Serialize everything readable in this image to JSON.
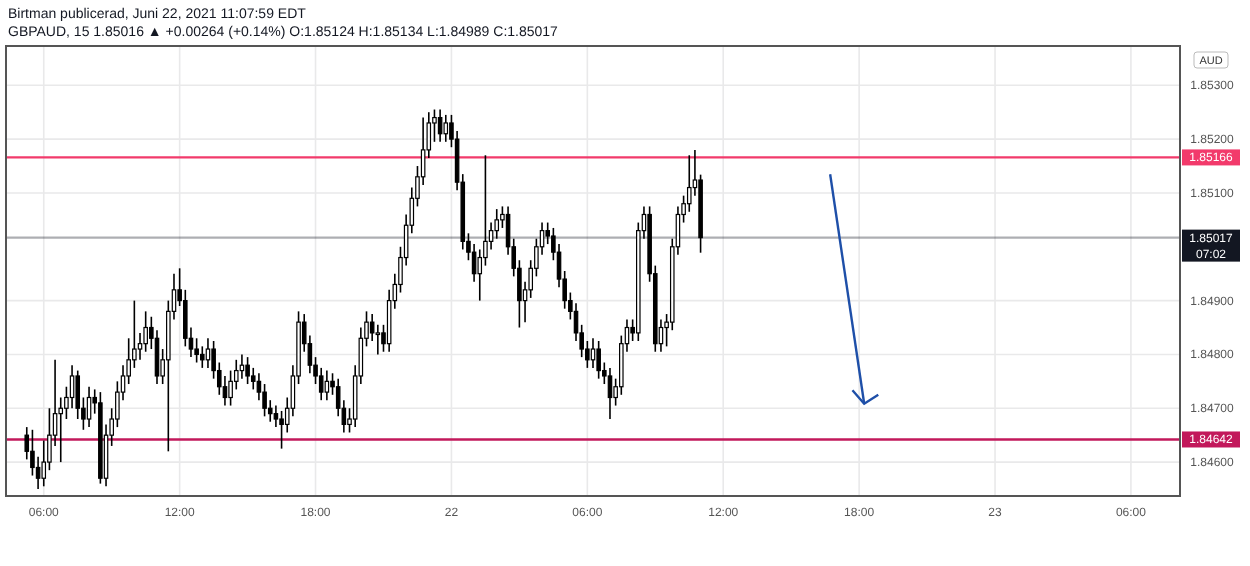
{
  "chart_data": {
    "type": "candlestick",
    "title": "Birtman publicerad, Juni 22, 2021 11:07:59 EDT",
    "subtitle": "GBPAUD, 15  1.85016 ▲ +0.00264 (+0.14%) O:1.85124 H:1.85134 L:1.84989 C:1.85017",
    "ylabel": "AUD",
    "x": [
      "2021-06-21T05:15",
      "2021-06-21T05:30",
      "2021-06-21T05:45",
      "2021-06-21T06:00",
      "2021-06-21T06:15",
      "2021-06-21T06:30",
      "2021-06-21T06:45",
      "2021-06-21T07:00",
      "2021-06-21T07:15",
      "2021-06-21T07:30",
      "2021-06-21T07:45",
      "2021-06-21T08:00",
      "2021-06-21T08:15",
      "2021-06-21T08:30",
      "2021-06-21T08:45",
      "2021-06-21T09:00",
      "2021-06-21T09:15",
      "2021-06-21T09:30",
      "2021-06-21T09:45",
      "2021-06-21T10:00",
      "2021-06-21T10:15",
      "2021-06-21T10:30",
      "2021-06-21T10:45",
      "2021-06-21T11:00",
      "2021-06-21T11:15",
      "2021-06-21T11:30",
      "2021-06-21T11:45",
      "2021-06-21T12:00",
      "2021-06-21T12:15",
      "2021-06-21T12:30",
      "2021-06-21T12:45",
      "2021-06-21T13:00",
      "2021-06-21T13:15",
      "2021-06-21T13:30",
      "2021-06-21T13:45",
      "2021-06-21T14:00",
      "2021-06-21T14:15",
      "2021-06-21T14:30",
      "2021-06-21T14:45",
      "2021-06-21T15:00",
      "2021-06-21T15:15",
      "2021-06-21T15:30",
      "2021-06-21T15:45",
      "2021-06-21T16:00",
      "2021-06-21T16:15",
      "2021-06-21T16:30",
      "2021-06-21T16:45",
      "2021-06-21T17:00",
      "2021-06-21T17:15",
      "2021-06-21T17:30",
      "2021-06-21T17:45",
      "2021-06-21T18:00",
      "2021-06-21T18:15",
      "2021-06-21T18:30",
      "2021-06-21T18:45",
      "2021-06-21T19:00",
      "2021-06-21T19:15",
      "2021-06-21T19:30",
      "2021-06-21T19:45",
      "2021-06-21T20:00",
      "2021-06-21T20:15",
      "2021-06-21T20:30",
      "2021-06-21T20:45",
      "2021-06-21T21:00",
      "2021-06-21T21:15",
      "2021-06-21T21:30",
      "2021-06-21T21:45",
      "2021-06-21T22:00",
      "2021-06-21T22:15",
      "2021-06-21T22:30",
      "2021-06-21T22:45",
      "2021-06-21T23:00",
      "2021-06-21T23:15",
      "2021-06-21T23:30",
      "2021-06-21T23:45",
      "2021-06-22T00:00",
      "2021-06-22T00:15",
      "2021-06-22T00:30",
      "2021-06-22T00:45",
      "2021-06-22T01:00",
      "2021-06-22T01:15",
      "2021-06-22T01:30",
      "2021-06-22T01:45",
      "2021-06-22T02:00",
      "2021-06-22T02:15",
      "2021-06-22T02:30",
      "2021-06-22T02:45",
      "2021-06-22T03:00",
      "2021-06-22T03:15",
      "2021-06-22T03:30",
      "2021-06-22T03:45",
      "2021-06-22T04:00",
      "2021-06-22T04:15",
      "2021-06-22T04:30",
      "2021-06-22T04:45",
      "2021-06-22T05:00",
      "2021-06-22T05:15",
      "2021-06-22T05:30",
      "2021-06-22T05:45",
      "2021-06-22T06:00",
      "2021-06-22T06:15",
      "2021-06-22T06:30",
      "2021-06-22T06:45",
      "2021-06-22T07:00",
      "2021-06-22T07:15",
      "2021-06-22T07:30",
      "2021-06-22T07:45",
      "2021-06-22T08:00",
      "2021-06-22T08:15",
      "2021-06-22T08:30",
      "2021-06-22T08:45",
      "2021-06-22T09:00",
      "2021-06-22T09:15",
      "2021-06-22T09:30",
      "2021-06-22T09:45",
      "2021-06-22T10:00",
      "2021-06-22T10:15",
      "2021-06-22T10:30",
      "2021-06-22T10:45",
      "2021-06-22T11:00"
    ],
    "ohlc": [
      [
        1.8465,
        1.84665,
        1.84605,
        1.8462
      ],
      [
        1.8462,
        1.8466,
        1.84575,
        1.8459
      ],
      [
        1.8459,
        1.8461,
        1.8455,
        1.8457
      ],
      [
        1.8457,
        1.8464,
        1.84555,
        1.846
      ],
      [
        1.846,
        1.847,
        1.84585,
        1.8465
      ],
      [
        1.8465,
        1.8479,
        1.8463,
        1.8469
      ],
      [
        1.8469,
        1.8472,
        1.846,
        1.847
      ],
      [
        1.847,
        1.8474,
        1.8468,
        1.8472
      ],
      [
        1.8472,
        1.8478,
        1.847,
        1.8476
      ],
      [
        1.8476,
        1.8477,
        1.8468,
        1.847
      ],
      [
        1.847,
        1.8472,
        1.8466,
        1.8468
      ],
      [
        1.8468,
        1.8474,
        1.84665,
        1.8472
      ],
      [
        1.8472,
        1.84735,
        1.8469,
        1.8471
      ],
      [
        1.8471,
        1.8473,
        1.8456,
        1.8457
      ],
      [
        1.8457,
        1.8467,
        1.84555,
        1.8465
      ],
      [
        1.8465,
        1.847,
        1.8463,
        1.8468
      ],
      [
        1.8468,
        1.8475,
        1.84665,
        1.8473
      ],
      [
        1.8473,
        1.8478,
        1.84715,
        1.8476
      ],
      [
        1.8476,
        1.8483,
        1.84745,
        1.8479
      ],
      [
        1.8479,
        1.849,
        1.84775,
        1.8481
      ],
      [
        1.8481,
        1.8484,
        1.8479,
        1.8482
      ],
      [
        1.8482,
        1.8488,
        1.84805,
        1.8485
      ],
      [
        1.8485,
        1.8487,
        1.8481,
        1.8483
      ],
      [
        1.8483,
        1.84845,
        1.84745,
        1.8476
      ],
      [
        1.8476,
        1.8481,
        1.84745,
        1.8479
      ],
      [
        1.8479,
        1.849,
        1.8462,
        1.8488
      ],
      [
        1.8488,
        1.8495,
        1.84865,
        1.8492
      ],
      [
        1.8492,
        1.8496,
        1.8489,
        1.849
      ],
      [
        1.849,
        1.8492,
        1.84815,
        1.8483
      ],
      [
        1.8483,
        1.8485,
        1.84795,
        1.8481
      ],
      [
        1.8481,
        1.8483,
        1.84785,
        1.848
      ],
      [
        1.848,
        1.84815,
        1.84775,
        1.8479
      ],
      [
        1.8479,
        1.8483,
        1.84775,
        1.8481
      ],
      [
        1.8481,
        1.84825,
        1.84755,
        1.8477
      ],
      [
        1.8477,
        1.84785,
        1.84725,
        1.8474
      ],
      [
        1.8474,
        1.8476,
        1.84705,
        1.8472
      ],
      [
        1.8472,
        1.8477,
        1.84705,
        1.8475
      ],
      [
        1.8475,
        1.8479,
        1.84735,
        1.8477
      ],
      [
        1.8477,
        1.848,
        1.84755,
        1.8478
      ],
      [
        1.8478,
        1.84795,
        1.84745,
        1.8476
      ],
      [
        1.8476,
        1.84775,
        1.84735,
        1.8475
      ],
      [
        1.8475,
        1.84765,
        1.84715,
        1.8473
      ],
      [
        1.8473,
        1.84745,
        1.84685,
        1.847
      ],
      [
        1.847,
        1.84715,
        1.84675,
        1.8469
      ],
      [
        1.8469,
        1.84705,
        1.84665,
        1.8468
      ],
      [
        1.8468,
        1.84695,
        1.84625,
        1.8467
      ],
      [
        1.8467,
        1.8472,
        1.84655,
        1.847
      ],
      [
        1.847,
        1.8478,
        1.84685,
        1.8476
      ],
      [
        1.8476,
        1.8488,
        1.84745,
        1.8486
      ],
      [
        1.8486,
        1.84875,
        1.84805,
        1.8482
      ],
      [
        1.8482,
        1.84835,
        1.84765,
        1.8478
      ],
      [
        1.8478,
        1.84795,
        1.84745,
        1.8476
      ],
      [
        1.8476,
        1.84775,
        1.84715,
        1.8473
      ],
      [
        1.8473,
        1.8477,
        1.84715,
        1.8475
      ],
      [
        1.8475,
        1.84765,
        1.84725,
        1.8474
      ],
      [
        1.8474,
        1.84755,
        1.84685,
        1.847
      ],
      [
        1.847,
        1.84715,
        1.84655,
        1.8467
      ],
      [
        1.8467,
        1.847,
        1.84655,
        1.8468
      ],
      [
        1.8468,
        1.8478,
        1.84665,
        1.8476
      ],
      [
        1.8476,
        1.8485,
        1.84745,
        1.8483
      ],
      [
        1.8483,
        1.8488,
        1.84815,
        1.8486
      ],
      [
        1.8486,
        1.84875,
        1.84825,
        1.8484
      ],
      [
        1.8484,
        1.84855,
        1.848,
        1.8484
      ],
      [
        1.8484,
        1.84855,
        1.84805,
        1.8482
      ],
      [
        1.8482,
        1.8492,
        1.84805,
        1.849
      ],
      [
        1.849,
        1.8495,
        1.84885,
        1.8493
      ],
      [
        1.8493,
        1.85,
        1.84915,
        1.8498
      ],
      [
        1.8498,
        1.8506,
        1.84965,
        1.8504
      ],
      [
        1.8504,
        1.8511,
        1.85025,
        1.8509
      ],
      [
        1.8509,
        1.8515,
        1.85075,
        1.8513
      ],
      [
        1.8513,
        1.8524,
        1.85115,
        1.8518
      ],
      [
        1.8518,
        1.8525,
        1.85165,
        1.8523
      ],
      [
        1.8523,
        1.85255,
        1.85195,
        1.8524
      ],
      [
        1.8524,
        1.85255,
        1.85195,
        1.8521
      ],
      [
        1.8521,
        1.85245,
        1.85195,
        1.8523
      ],
      [
        1.8523,
        1.85245,
        1.85185,
        1.852
      ],
      [
        1.852,
        1.85215,
        1.85105,
        1.8512
      ],
      [
        1.8512,
        1.85135,
        1.84995,
        1.8501
      ],
      [
        1.8501,
        1.85025,
        1.84975,
        1.8499
      ],
      [
        1.8499,
        1.85005,
        1.84935,
        1.8495
      ],
      [
        1.8495,
        1.84995,
        1.849,
        1.8498
      ],
      [
        1.8498,
        1.8517,
        1.84965,
        1.8501
      ],
      [
        1.8501,
        1.85045,
        1.84995,
        1.8503
      ],
      [
        1.8503,
        1.8507,
        1.85015,
        1.8505
      ],
      [
        1.8505,
        1.85075,
        1.85035,
        1.8506
      ],
      [
        1.8506,
        1.85075,
        1.84985,
        1.85
      ],
      [
        1.85,
        1.85015,
        1.84945,
        1.8496
      ],
      [
        1.8496,
        1.84975,
        1.8485,
        1.849
      ],
      [
        1.849,
        1.84935,
        1.8486,
        1.8492
      ],
      [
        1.8492,
        1.84975,
        1.84905,
        1.8496
      ],
      [
        1.8496,
        1.85015,
        1.84945,
        1.85
      ],
      [
        1.85,
        1.85045,
        1.84985,
        1.8503
      ],
      [
        1.8503,
        1.85045,
        1.85005,
        1.8502
      ],
      [
        1.8502,
        1.85035,
        1.84975,
        1.8499
      ],
      [
        1.8499,
        1.85005,
        1.84925,
        1.8494
      ],
      [
        1.8494,
        1.84955,
        1.84885,
        1.849
      ],
      [
        1.849,
        1.84915,
        1.84865,
        1.8488
      ],
      [
        1.8488,
        1.84895,
        1.84825,
        1.8484
      ],
      [
        1.8484,
        1.84855,
        1.84795,
        1.8481
      ],
      [
        1.8481,
        1.84825,
        1.84775,
        1.8479
      ],
      [
        1.8479,
        1.8483,
        1.84775,
        1.8481
      ],
      [
        1.8481,
        1.84825,
        1.84755,
        1.8477
      ],
      [
        1.8477,
        1.84785,
        1.84745,
        1.8476
      ],
      [
        1.8476,
        1.84775,
        1.8468,
        1.8472
      ],
      [
        1.8472,
        1.84755,
        1.84705,
        1.8474
      ],
      [
        1.8474,
        1.84835,
        1.84725,
        1.8482
      ],
      [
        1.8482,
        1.84865,
        1.84805,
        1.8485
      ],
      [
        1.8485,
        1.84865,
        1.84825,
        1.8484
      ],
      [
        1.8484,
        1.85045,
        1.84825,
        1.8503
      ],
      [
        1.8503,
        1.85075,
        1.85015,
        1.8506
      ],
      [
        1.8506,
        1.85075,
        1.84935,
        1.8495
      ],
      [
        1.8495,
        1.84965,
        1.84805,
        1.8482
      ],
      [
        1.8482,
        1.84865,
        1.84805,
        1.8485
      ],
      [
        1.8485,
        1.84875,
        1.84815,
        1.8486
      ],
      [
        1.8486,
        1.85015,
        1.84845,
        1.85
      ],
      [
        1.85,
        1.85075,
        1.84985,
        1.8506
      ],
      [
        1.8506,
        1.85095,
        1.85045,
        1.8508
      ],
      [
        1.8508,
        1.8517,
        1.85065,
        1.8511
      ],
      [
        1.8511,
        1.8518,
        1.85095,
        1.85124
      ],
      [
        1.85124,
        1.85134,
        1.84989,
        1.85017
      ]
    ],
    "xlim": [
      "2021-06-21T04:20",
      "2021-06-23T08:10"
    ],
    "xticks": [
      {
        "value": "2021-06-21T06:00",
        "label": "06:00"
      },
      {
        "value": "2021-06-21T12:00",
        "label": "12:00"
      },
      {
        "value": "2021-06-21T18:00",
        "label": "18:00"
      },
      {
        "value": "2021-06-22T00:00",
        "label": "22"
      },
      {
        "value": "2021-06-22T06:00",
        "label": "06:00"
      },
      {
        "value": "2021-06-22T12:00",
        "label": "12:00"
      },
      {
        "value": "2021-06-22T18:00",
        "label": "18:00"
      },
      {
        "value": "2021-06-23T00:00",
        "label": "23"
      },
      {
        "value": "2021-06-23T06:00",
        "label": "06:00"
      }
    ],
    "ylim": [
      1.84537,
      1.85373
    ],
    "yticks": [
      {
        "value": 1.846,
        "label": "1.84600"
      },
      {
        "value": 1.847,
        "label": "1.84700"
      },
      {
        "value": 1.848,
        "label": "1.84800"
      },
      {
        "value": 1.849,
        "label": "1.84900"
      },
      {
        "value": 1.851,
        "label": "1.85100"
      },
      {
        "value": 1.852,
        "label": "1.85200"
      },
      {
        "value": 1.853,
        "label": "1.85300"
      }
    ],
    "ref_lines": [
      {
        "axis": "y",
        "value": 1.85166,
        "label": "1.85166",
        "color": "#f23a6b"
      },
      {
        "axis": "y",
        "value": 1.84642,
        "label": "1.84642",
        "color": "#c2185b"
      },
      {
        "axis": "y",
        "value": 1.85017,
        "label": "1.85017 07:02",
        "color": "#131722"
      }
    ],
    "grid": true
  }
}
